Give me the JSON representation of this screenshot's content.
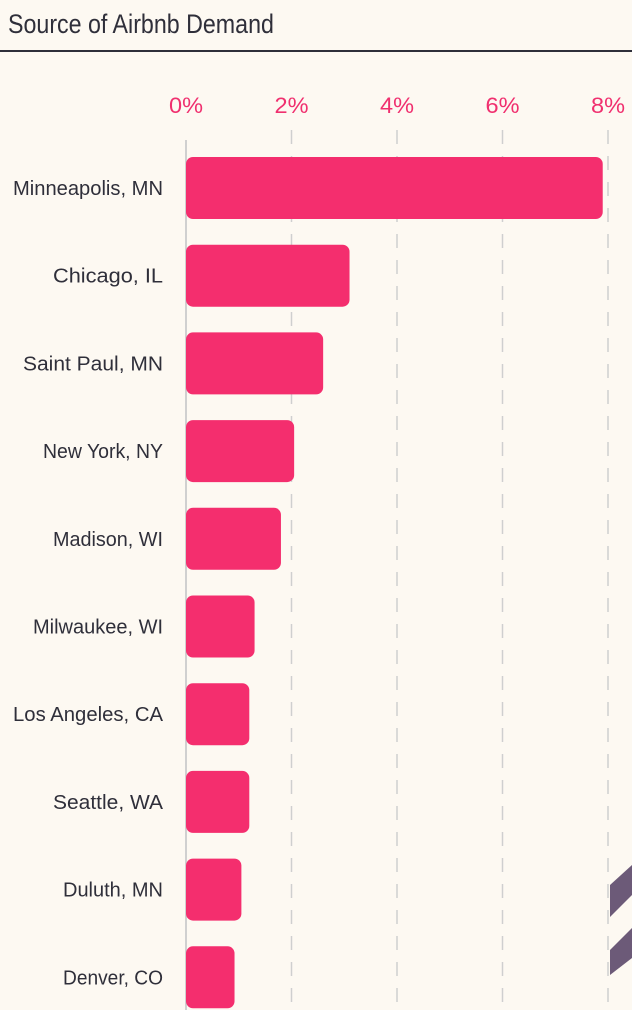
{
  "header": {
    "title": "Source of Airbnb Demand"
  },
  "colors": {
    "bar": "#f42e6e",
    "tick_label": "#f0306f",
    "text": "#2f2f3a",
    "background": "#fdf9f2",
    "decor": "#6c5a78"
  },
  "chart_data": {
    "type": "bar",
    "orientation": "horizontal",
    "title": "Source of Airbnb Demand",
    "categories": [
      "Minneapolis, MN",
      "Chicago, IL",
      "Saint Paul, MN",
      "New York, NY",
      "Madison, WI",
      "Milwaukee, WI",
      "Los Angeles, CA",
      "Seattle, WA",
      "Duluth, MN",
      "Denver, CO"
    ],
    "values": [
      7.9,
      3.1,
      2.6,
      2.05,
      1.8,
      1.3,
      1.2,
      1.2,
      1.05,
      0.92
    ],
    "xlim": [
      0,
      8
    ],
    "xticks": [
      0,
      2,
      4,
      6,
      8
    ],
    "xtick_labels": [
      "0%",
      "2%",
      "4%",
      "6%",
      "8%"
    ],
    "tick_position": "top",
    "grid": true
  }
}
